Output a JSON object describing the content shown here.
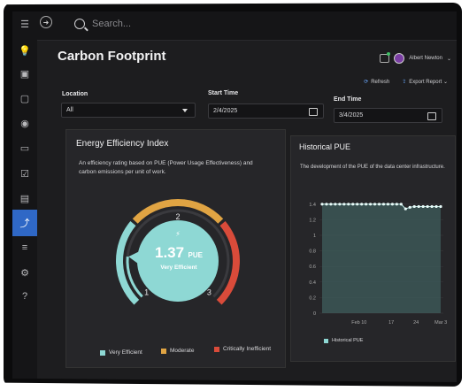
{
  "app": {
    "search_placeholder": "Search...",
    "page_title": "Carbon Footprint",
    "user_name": "Albert Newton"
  },
  "toolbar": {
    "refresh_label": "Refresh",
    "export_label": "Export Report"
  },
  "filters": {
    "location_label": "Location",
    "location_value": "All",
    "start_label": "Start Time",
    "start_value": "2/4/2025",
    "end_label": "End Time",
    "end_value": "3/4/2025"
  },
  "sidebar": {
    "items": [
      {
        "icon": "menu-icon"
      },
      {
        "icon": "lightbulb-icon"
      },
      {
        "icon": "package-icon"
      },
      {
        "icon": "image-icon"
      },
      {
        "icon": "eye-icon"
      },
      {
        "icon": "folder-icon"
      },
      {
        "icon": "checklist-icon"
      },
      {
        "icon": "book-icon"
      },
      {
        "icon": "trend-chart-icon",
        "active": true
      },
      {
        "icon": "list-icon"
      },
      {
        "icon": "settings-icon"
      },
      {
        "icon": "help-icon"
      }
    ]
  },
  "efficiency": {
    "title": "Energy Efficiency Index",
    "description": "An efficiency rating based on PUE (Power Usage Effectiveness) and carbon emissions per unit of work.",
    "value": "1.37",
    "unit": "PUE",
    "rating": "Very Efficient",
    "gauge_value": 1.37,
    "gauge_min": 1,
    "gauge_max": 3,
    "ticks": [
      "1",
      "2",
      "3"
    ],
    "legend": [
      {
        "label": "Very Efficient",
        "color": "#8ed8d4"
      },
      {
        "label": "Moderate",
        "color": "#e0a443"
      },
      {
        "label": "Critically Inefficient",
        "color": "#d94b3a"
      }
    ]
  },
  "historical": {
    "title": "Historical PUE",
    "description": "The development of the PUE of the data center infrastructure."
  },
  "chart_data": {
    "type": "area",
    "title": "Historical PUE",
    "xlabel": "",
    "ylabel": "",
    "x_ticks": [
      "Feb 10",
      "17",
      "24",
      "Mar 3"
    ],
    "y_ticks": [
      "0",
      "0.2",
      "0.4",
      "0.6",
      "0.8",
      "1",
      "1.2",
      "1.4"
    ],
    "ylim": [
      0,
      1.5
    ],
    "grid": true,
    "legend_position": "bottom-left",
    "series": [
      {
        "name": "Historical PUE",
        "color": "#8ed8d4",
        "values": [
          1.4,
          1.4,
          1.4,
          1.4,
          1.4,
          1.4,
          1.4,
          1.4,
          1.4,
          1.4,
          1.4,
          1.4,
          1.4,
          1.4,
          1.4,
          1.4,
          1.4,
          1.4,
          1.4,
          1.34,
          1.36,
          1.37,
          1.37,
          1.37,
          1.37,
          1.37,
          1.37,
          1.37
        ]
      }
    ]
  }
}
